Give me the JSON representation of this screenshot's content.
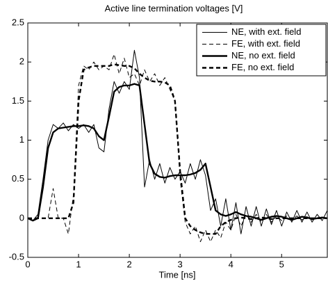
{
  "chart_data": {
    "type": "line",
    "title": "Active line termination voltages [V]",
    "x_label": "Time [ns]",
    "x": [
      0,
      0.1,
      0.2,
      0.3,
      0.4,
      0.5,
      0.6,
      0.7,
      0.8,
      0.9,
      1,
      1.1,
      1.2,
      1.3,
      1.4,
      1.5,
      1.6,
      1.7,
      1.8,
      1.9,
      2,
      2.1,
      2.2,
      2.3,
      2.4,
      2.5,
      2.6,
      2.7,
      2.8,
      2.9,
      3,
      3.1,
      3.2,
      3.3,
      3.4,
      3.5,
      3.6,
      3.7,
      3.8,
      3.9,
      4,
      4.1,
      4.2,
      4.3,
      4.4,
      4.5,
      4.6,
      4.7,
      4.8,
      4.9,
      5,
      5.1,
      5.2,
      5.3,
      5.4,
      5.5,
      5.6,
      5.7,
      5.8,
      5.9
    ],
    "series": [
      {
        "name": "NE, with ext. field",
        "color": "#000000",
        "line_width": 1,
        "dash": false,
        "values": [
          0,
          -0.03,
          0.05,
          0.5,
          1.0,
          1.2,
          1.15,
          1.22,
          1.12,
          1.2,
          1.15,
          1.2,
          1.1,
          1.2,
          0.9,
          0.85,
          1.4,
          1.75,
          1.6,
          1.75,
          1.65,
          2.15,
          1.8,
          0.4,
          0.75,
          0.5,
          0.7,
          0.45,
          0.65,
          0.5,
          0.6,
          0.45,
          0.7,
          0.5,
          0.75,
          0.55,
          0.1,
          0.25,
          -0.1,
          0.25,
          -0.15,
          0.2,
          -0.2,
          0.15,
          -0.1,
          0.15,
          -0.1,
          0.12,
          -0.08,
          0.1,
          -0.1,
          0.08,
          -0.05,
          0.1,
          -0.05,
          0.08,
          -0.05,
          0.05,
          -0.03,
          0.1
        ]
      },
      {
        "name": "FE, with ext. field",
        "color": "#000000",
        "line_width": 1,
        "dash": true,
        "values": [
          0,
          0,
          0,
          0,
          0,
          0.38,
          0,
          0,
          -0.2,
          0.3,
          1.7,
          1.95,
          1.9,
          2.0,
          1.9,
          1.95,
          1.9,
          2.1,
          1.85,
          2.05,
          1.8,
          1.85,
          1.7,
          1.9,
          1.75,
          1.85,
          1.7,
          1.8,
          1.65,
          1.5,
          0.5,
          -0.05,
          -0.2,
          -0.1,
          -0.3,
          -0.15,
          -0.3,
          -0.15,
          -0.25,
          -0.05,
          -0.15,
          0.05,
          -0.1,
          0.05,
          -0.05,
          0.05,
          -0.05,
          0.05,
          -0.05,
          0.03,
          -0.03,
          0.03,
          -0.02,
          0.03,
          -0.02,
          0.02,
          -0.02,
          0.02,
          -0.01,
          0.01
        ]
      },
      {
        "name": "NE, no ext. field",
        "color": "#000000",
        "line_width": 2.4,
        "dash": false,
        "values": [
          0,
          -0.03,
          0,
          0.4,
          0.9,
          1.1,
          1.15,
          1.16,
          1.17,
          1.18,
          1.18,
          1.19,
          1.18,
          1.15,
          1.05,
          1.0,
          1.3,
          1.62,
          1.68,
          1.7,
          1.7,
          1.72,
          1.7,
          1.2,
          0.7,
          0.57,
          0.53,
          0.52,
          0.54,
          0.55,
          0.55,
          0.55,
          0.56,
          0.58,
          0.62,
          0.7,
          0.4,
          0.1,
          0.05,
          0.03,
          0.05,
          0.08,
          0.05,
          0.03,
          0.02,
          0,
          -0.02,
          0,
          0.02,
          0.03,
          0.02,
          0,
          -0.02,
          0,
          0.02,
          0.01,
          -0.01,
          0,
          0.01,
          0
        ]
      },
      {
        "name": "FE, no ext. field",
        "color": "#000000",
        "line_width": 2.4,
        "dash": true,
        "values": [
          0,
          0,
          0,
          0,
          0,
          0,
          0,
          0,
          0,
          0.2,
          1.5,
          1.9,
          1.93,
          1.95,
          1.95,
          1.95,
          1.95,
          1.97,
          1.96,
          1.95,
          1.95,
          1.92,
          1.85,
          1.8,
          1.76,
          1.75,
          1.75,
          1.74,
          1.7,
          1.5,
          0.6,
          0,
          -0.1,
          -0.15,
          -0.18,
          -0.2,
          -0.2,
          -0.2,
          -0.1,
          -0.05,
          -0.02,
          0,
          0.01,
          0,
          -0.01,
          0,
          0.01,
          0,
          -0.01,
          0,
          0,
          0,
          0,
          0,
          0,
          0,
          0,
          0,
          0,
          0
        ]
      }
    ],
    "xlim": [
      0,
      5.9
    ],
    "xticks": [
      0,
      1,
      2,
      3,
      4,
      5
    ],
    "ylim": [
      -0.5,
      2.5
    ],
    "yticks": [
      -0.5,
      0,
      0.5,
      1,
      1.5,
      2,
      2.5
    ],
    "grid": false,
    "legend": "upper right"
  }
}
